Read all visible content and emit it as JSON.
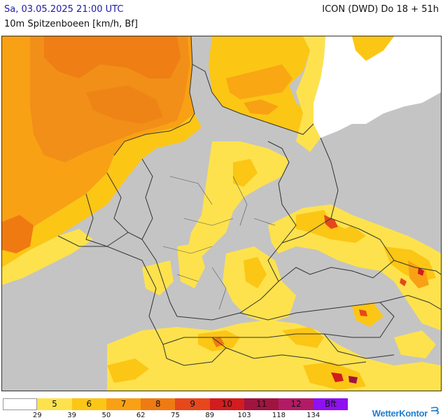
{
  "header": {
    "datetime": "Sa, 03.05.2025 21:00 UTC",
    "subtitle": "10m Spitzenboeen [km/h, Bf]",
    "model": "ICON (DWD) Do 18 + 51h"
  },
  "legend": {
    "bins": [
      {
        "bf": "",
        "color": "#ffffff"
      },
      {
        "bf": "5",
        "color": "#fde24d"
      },
      {
        "bf": "6",
        "color": "#fcc615"
      },
      {
        "bf": "7",
        "color": "#f9a114"
      },
      {
        "bf": "8",
        "color": "#f07a12"
      },
      {
        "bf": "9",
        "color": "#e7471b"
      },
      {
        "bf": "10",
        "color": "#d21c1e"
      },
      {
        "bf": "11",
        "color": "#a01440"
      },
      {
        "bf": "12",
        "color": "#b31a66"
      },
      {
        "bf": "Bft",
        "color": "#8f10f0"
      }
    ],
    "ticks": [
      "29",
      "39",
      "50",
      "62",
      "75",
      "89",
      "103",
      "118",
      "134"
    ]
  },
  "brand": {
    "name": "WetterKontor",
    "icon": "wind-icon"
  },
  "colors": {
    "land": "#c4c4c4",
    "border": "#333333",
    "outside": "#ffffff"
  }
}
